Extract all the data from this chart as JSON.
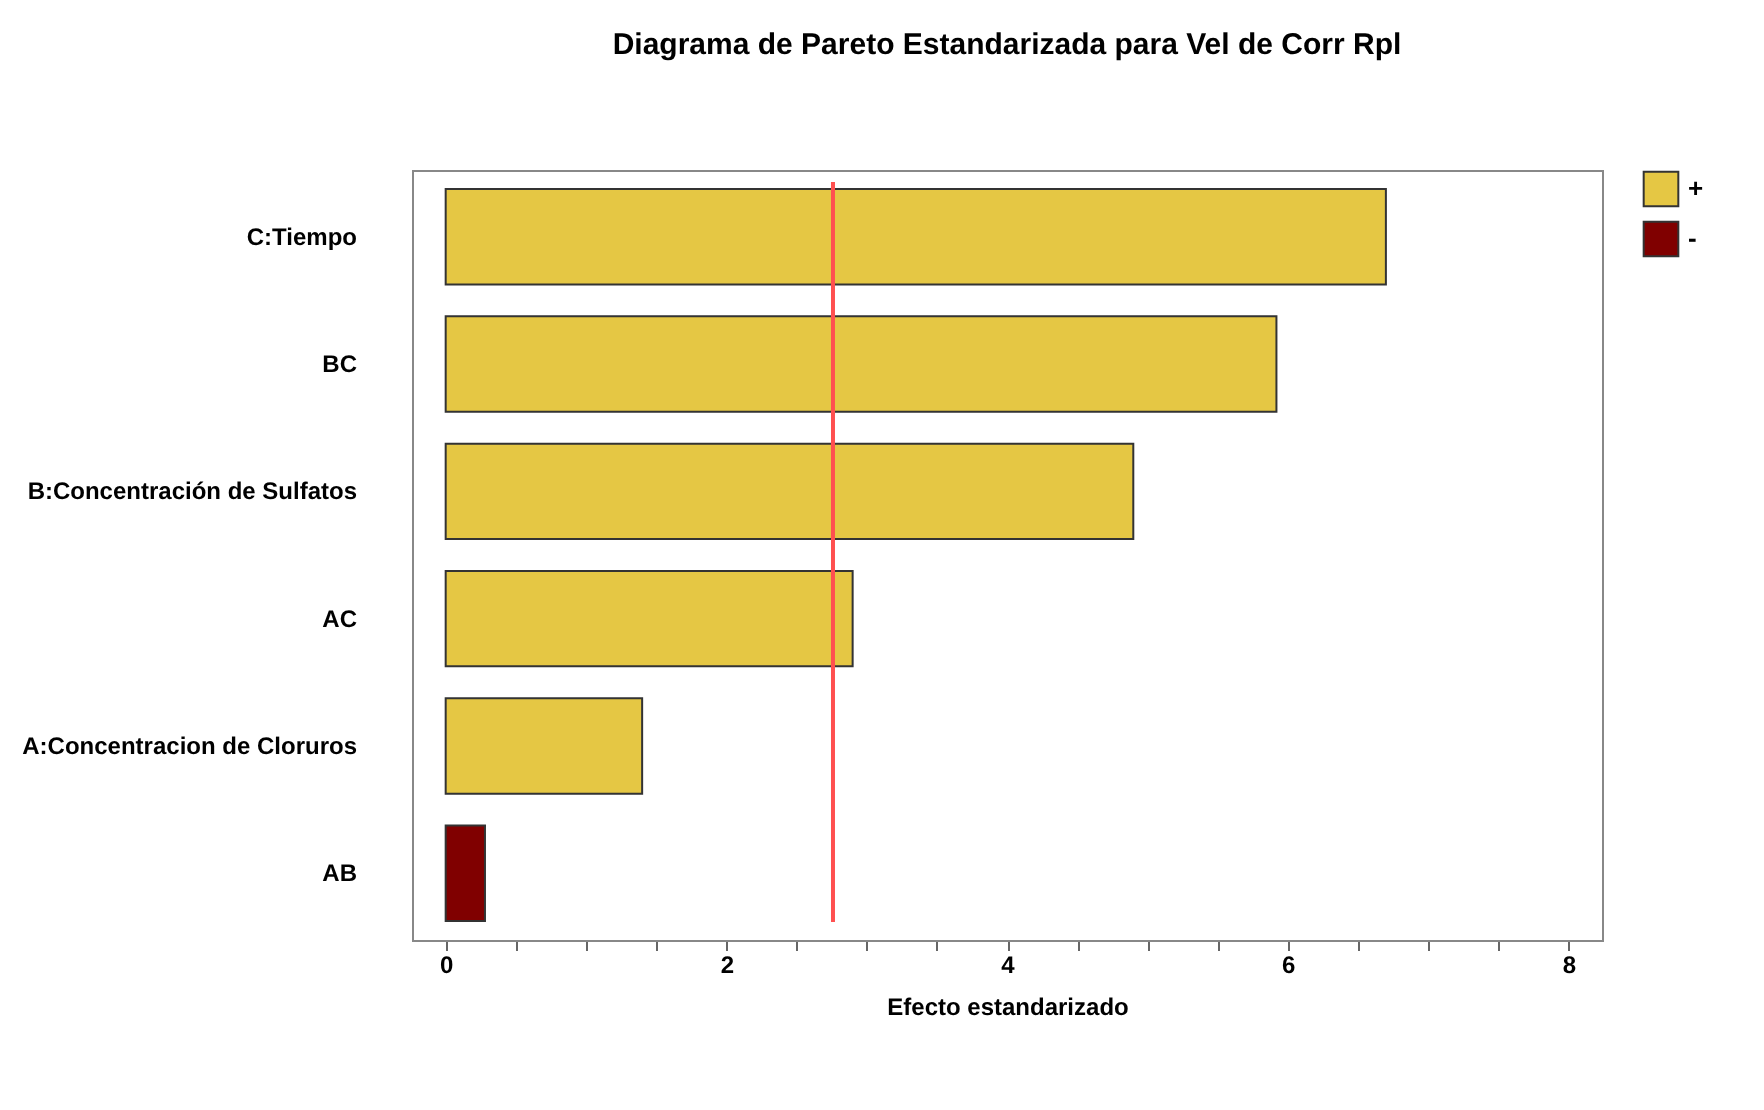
{
  "chart_data": {
    "type": "bar",
    "orientation": "horizontal",
    "title": "Diagrama de Pareto Estandarizada para Vel de Corr Rpl",
    "xlabel": "Efecto estandarizado",
    "categories": [
      "C:Tiempo",
      "BC",
      "B:Concentración de Sulfatos",
      "AC",
      "A:Concentracion de Cloruros",
      "AB"
    ],
    "series": [
      {
        "name": "+",
        "color": "#e5c744",
        "values": [
          6.7,
          5.92,
          4.9,
          2.9,
          1.4,
          null
        ]
      },
      {
        "name": "-",
        "color": "#800000",
        "values": [
          null,
          null,
          null,
          null,
          null,
          0.28
        ]
      }
    ],
    "xlim": [
      -0.24,
      8.24
    ],
    "xticks": [
      0,
      {
        "value": 0.5,
        "label": null
      },
      {
        "value": 1,
        "label": null
      },
      {
        "value": 1.5,
        "label": null
      },
      2,
      {
        "value": 2.5,
        "label": null
      },
      {
        "value": 3,
        "label": null
      },
      {
        "value": 3.5,
        "label": null
      },
      4,
      {
        "value": 4.5,
        "label": null
      },
      {
        "value": 5,
        "label": null
      },
      {
        "value": 5.5,
        "label": null
      },
      6,
      {
        "value": 6.5,
        "label": null
      },
      {
        "value": 7,
        "label": null
      },
      {
        "value": 7.5,
        "label": null
      },
      8
    ],
    "ref_lines": [
      {
        "axis": "x",
        "value": 2.76,
        "color": "#ff5050"
      }
    ],
    "legend": "top right"
  }
}
